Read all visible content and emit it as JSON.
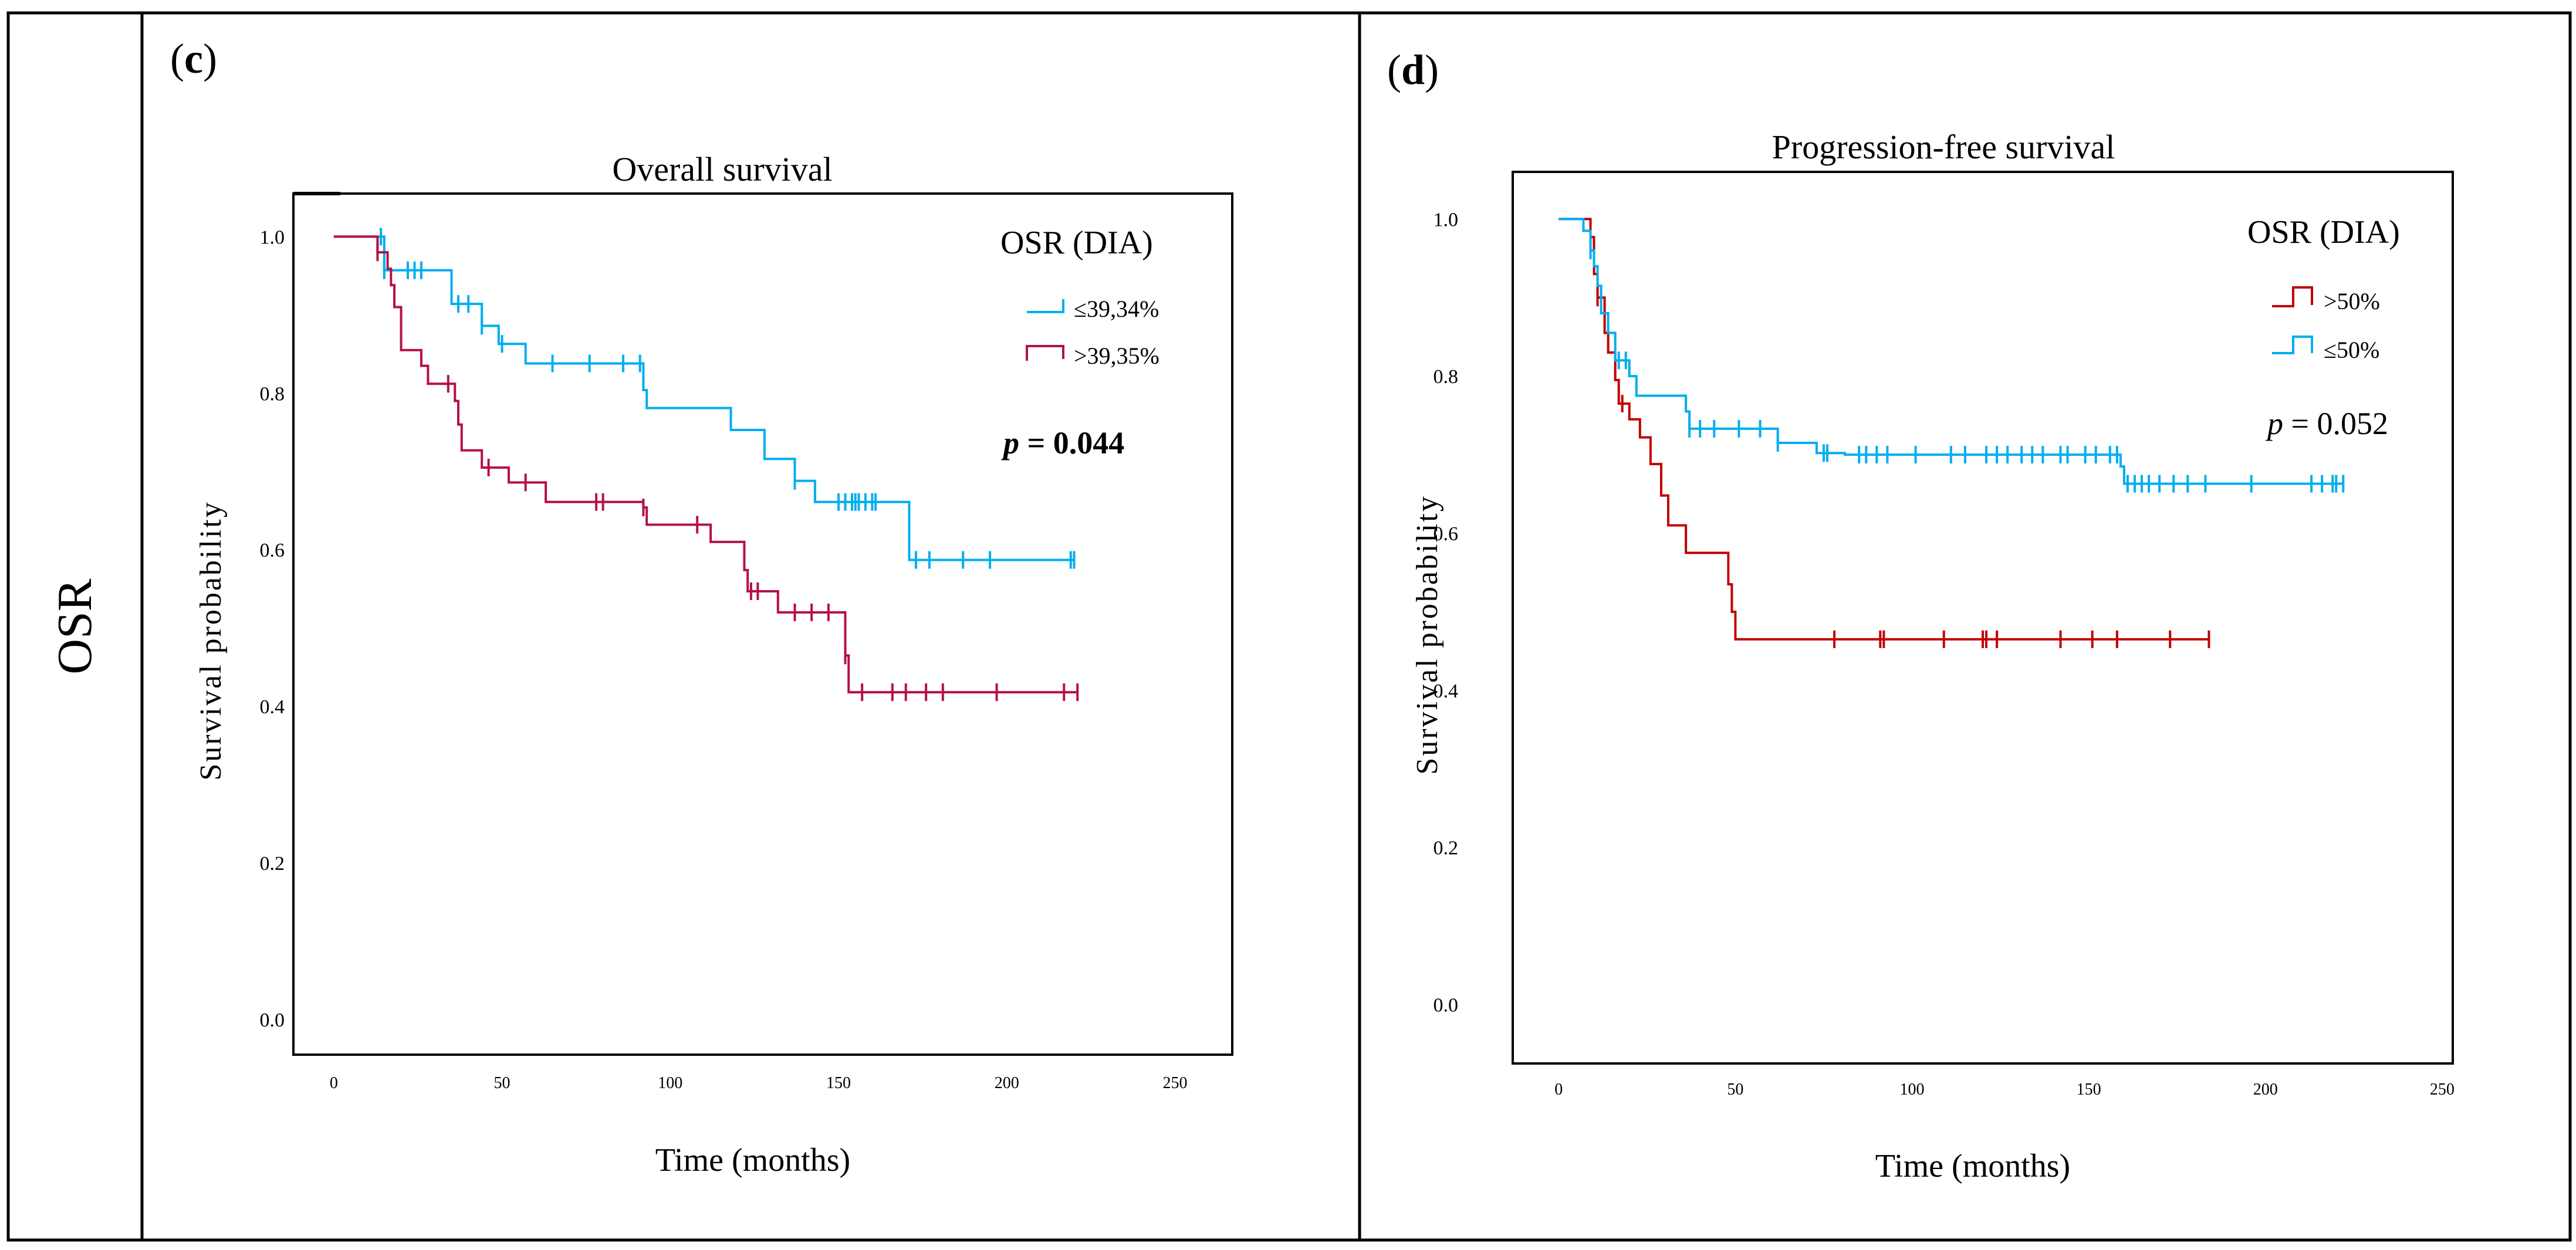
{
  "row_label": "OSR",
  "colors": {
    "blue": "#00aeef",
    "magenta": "#b5104a",
    "red": "#c00000",
    "frame": "#000000"
  },
  "chart_data": [
    {
      "panel": "c",
      "type": "line",
      "subtype": "kaplan-meier",
      "title": "Overall survival",
      "xlabel": "Time (months)",
      "ylabel": "Survival probability",
      "xlim": [
        -12,
        267
      ],
      "ylim": [
        -0.045,
        1.055
      ],
      "x_ticks": [
        0,
        50,
        100,
        150,
        200,
        250
      ],
      "y_ticks": [
        0.0,
        0.2,
        0.4,
        0.6,
        0.8,
        1.0
      ],
      "x_tick_labels": [
        "0",
        "50",
        "100",
        "150",
        "200",
        "250"
      ],
      "y_tick_labels": [
        "0.0",
        "0.2",
        "0.4",
        "0.6",
        "0.8",
        "1.0"
      ],
      "legend_title": "OSR (DIA)",
      "legend_position": "top-right",
      "p_label": "p",
      "p_value": "= 0.044",
      "p_bold": true,
      "series": [
        {
          "name": "≤39,34%",
          "color": "#00aeef",
          "steps": [
            [
              0,
              1.0
            ],
            [
              15,
              0.957
            ],
            [
              35,
              0.914
            ],
            [
              44,
              0.886
            ],
            [
              49,
              0.863
            ],
            [
              57,
              0.838
            ],
            [
              92,
              0.804
            ],
            [
              93,
              0.781
            ],
            [
              118,
              0.753
            ],
            [
              128,
              0.716
            ],
            [
              137,
              0.688
            ],
            [
              143,
              0.661
            ],
            [
              171,
              0.587
            ],
            [
              220,
              0.587
            ]
          ],
          "censored": [
            14,
            15,
            22,
            24,
            26,
            37,
            40,
            44,
            50,
            65,
            76,
            86,
            91,
            137,
            150,
            152,
            154,
            155,
            156,
            158,
            160,
            161,
            173,
            177,
            187,
            195,
            219,
            220
          ]
        },
        {
          "name": ">39,35%",
          "color": "#b5104a",
          "steps": [
            [
              0,
              1.0
            ],
            [
              13,
              0.98
            ],
            [
              16,
              0.959
            ],
            [
              17,
              0.938
            ],
            [
              18,
              0.91
            ],
            [
              20,
              0.855
            ],
            [
              26,
              0.835
            ],
            [
              28,
              0.812
            ],
            [
              36,
              0.79
            ],
            [
              37,
              0.76
            ],
            [
              38,
              0.727
            ],
            [
              44,
              0.705
            ],
            [
              52,
              0.686
            ],
            [
              63,
              0.661
            ],
            [
              92,
              0.654
            ],
            [
              93,
              0.632
            ],
            [
              112,
              0.61
            ],
            [
              122,
              0.574
            ],
            [
              123,
              0.547
            ],
            [
              132,
              0.52
            ],
            [
              152,
              0.465
            ],
            [
              153,
              0.418
            ],
            [
              221,
              0.418
            ]
          ],
          "censored": [
            13,
            34,
            46,
            57,
            78,
            80,
            92,
            108,
            124,
            126,
            137,
            142,
            147,
            152,
            157,
            166,
            170,
            176,
            181,
            197,
            217,
            221
          ]
        }
      ]
    },
    {
      "panel": "d",
      "type": "line",
      "subtype": "kaplan-meier",
      "title": "Progression-free survival",
      "xlabel": "Time (months)",
      "ylabel": "Survival probability",
      "xlim": [
        -13,
        253
      ],
      "ylim": [
        -0.075,
        1.06
      ],
      "x_ticks": [
        0,
        50,
        100,
        150,
        200,
        250
      ],
      "y_ticks": [
        0.0,
        0.2,
        0.4,
        0.6,
        0.8,
        1.0
      ],
      "x_tick_labels": [
        "0",
        "50",
        "100",
        "150",
        "200",
        "250"
      ],
      "y_tick_labels": [
        "0.0",
        "0.2",
        "0.4",
        "0.6",
        "0.8",
        "1.0"
      ],
      "legend_title": "OSR (DIA)",
      "legend_position": "top-right",
      "p_label": "p",
      "p_value": "= 0.052",
      "p_bold": false,
      "series": [
        {
          "name": ">50%",
          "color": "#c00000",
          "steps": [
            [
              0,
              1.0
            ],
            [
              9,
              0.977
            ],
            [
              10,
              0.93
            ],
            [
              11,
              0.9
            ],
            [
              13,
              0.855
            ],
            [
              14,
              0.83
            ],
            [
              16,
              0.795
            ],
            [
              17,
              0.765
            ],
            [
              20,
              0.745
            ],
            [
              23,
              0.722
            ],
            [
              26,
              0.688
            ],
            [
              29,
              0.648
            ],
            [
              31,
              0.61
            ],
            [
              36,
              0.575
            ],
            [
              48,
              0.535
            ],
            [
              49,
              0.5
            ],
            [
              50,
              0.465
            ],
            [
              184,
              0.465
            ]
          ],
          "censored": [
            11,
            18,
            78,
            91,
            92,
            109,
            120,
            121,
            124,
            142,
            151,
            158,
            173,
            184
          ]
        },
        {
          "name": "≤50%",
          "color": "#00aeef",
          "steps": [
            [
              0,
              1.0
            ],
            [
              7,
              0.985
            ],
            [
              9,
              0.96
            ],
            [
              10,
              0.94
            ],
            [
              11,
              0.915
            ],
            [
              12,
              0.88
            ],
            [
              14,
              0.855
            ],
            [
              16,
              0.82
            ],
            [
              20,
              0.8
            ],
            [
              22,
              0.775
            ],
            [
              36,
              0.755
            ],
            [
              37,
              0.733
            ],
            [
              62,
              0.715
            ],
            [
              73,
              0.702
            ],
            [
              81,
              0.7
            ],
            [
              159,
              0.685
            ],
            [
              160,
              0.663
            ],
            [
              222,
              0.663
            ]
          ],
          "censored": [
            9,
            17,
            19,
            37,
            40,
            44,
            51,
            57,
            62,
            75,
            76,
            85,
            87,
            90,
            93,
            101,
            111,
            115,
            121,
            124,
            127,
            131,
            134,
            137,
            142,
            144,
            149,
            152,
            156,
            158,
            161,
            163,
            165,
            167,
            170,
            174,
            178,
            183,
            196,
            213,
            216,
            219,
            220,
            222
          ]
        }
      ]
    }
  ]
}
